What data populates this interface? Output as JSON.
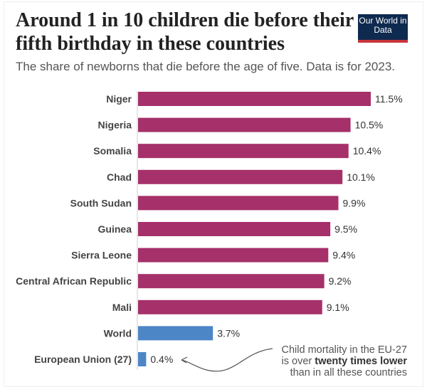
{
  "header": {
    "title": "Around 1 in 10 children die before their fifth birthday in these countries",
    "subtitle": "The share of newborns that die before the age of five. Data is for 2023.",
    "logo": "Our World in Data"
  },
  "chart_data": {
    "type": "bar",
    "orientation": "horizontal",
    "categories": [
      "Niger",
      "Nigeria",
      "Somalia",
      "Chad",
      "South Sudan",
      "Guinea",
      "Sierra Leone",
      "Central African Republic",
      "Mali",
      "World",
      "European Union (27)"
    ],
    "values": [
      11.5,
      10.5,
      10.4,
      10.1,
      9.9,
      9.5,
      9.4,
      9.2,
      9.1,
      3.7,
      0.4
    ],
    "value_labels": [
      "11.5%",
      "10.5%",
      "10.4%",
      "10.1%",
      "9.9%",
      "9.5%",
      "9.4%",
      "9.2%",
      "9.1%",
      "3.7%",
      "0.4%"
    ],
    "colors": [
      "#a5306a",
      "#a5306a",
      "#a5306a",
      "#a5306a",
      "#a5306a",
      "#a5306a",
      "#a5306a",
      "#a5306a",
      "#a5306a",
      "#4c86c6",
      "#4c86c6"
    ],
    "xlim": [
      0,
      11.5
    ],
    "grid": false,
    "annotation": {
      "line1": "Child mortality in the EU-27",
      "line2_pre": "is over ",
      "line2_bold": "twenty times lower",
      "line3": "than in all these countries"
    }
  }
}
